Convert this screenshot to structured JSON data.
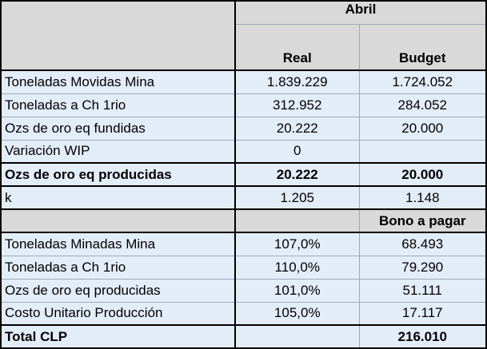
{
  "header": {
    "month": "Abril",
    "columns": [
      "Real",
      "Budget"
    ]
  },
  "rows": [
    {
      "label": "Toneladas Movidas Mina",
      "real": "1.839.229",
      "budget": "1.724.052"
    },
    {
      "label": "Toneladas a Ch 1rio",
      "real": "312.952",
      "budget": "284.052"
    },
    {
      "label": "Ozs de oro eq fundidas",
      "real": "20.222",
      "budget": "20.000"
    },
    {
      "label": "Variación WIP",
      "real": "0"
    },
    {
      "label": "Ozs de oro eq producidas",
      "real": "20.222",
      "budget": "20.000"
    },
    {
      "label": "k",
      "real": "1.205",
      "budget": "1.148"
    }
  ],
  "bonus": {
    "title": "Bono a pagar",
    "rows": [
      {
        "label": "Toneladas Minadas Mina",
        "real": "107,0%",
        "budget": "68.493"
      },
      {
        "label": "Toneladas a Ch 1rio",
        "real": "110,0%",
        "budget": "79.290"
      },
      {
        "label": "Ozs de oro eq producidas",
        "real": "101,0%",
        "budget": "51.111"
      },
      {
        "label": "Costo Unitario Producción",
        "real": "105,0%",
        "budget": "17.117"
      }
    ]
  },
  "total": {
    "label": "Total CLP",
    "budget": "216.010"
  }
}
